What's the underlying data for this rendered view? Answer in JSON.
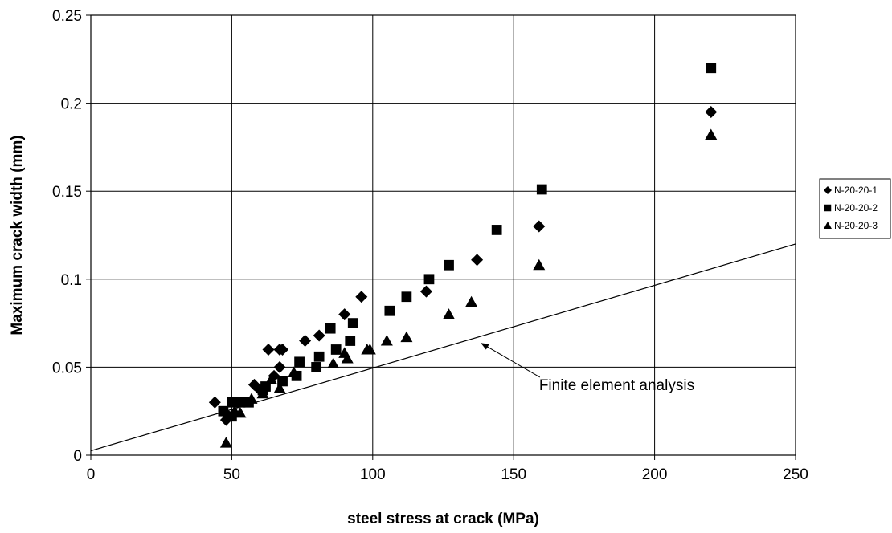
{
  "chart_data": {
    "type": "scatter",
    "title": "",
    "xlabel": "steel stress at crack (MPa)",
    "ylabel": "Maximum crack width (mm)",
    "xlim": [
      0,
      250
    ],
    "ylim": [
      0,
      0.25
    ],
    "x_ticks": [
      0,
      50,
      100,
      150,
      200,
      250
    ],
    "y_ticks": [
      0,
      0.05,
      0.1,
      0.15,
      0.2,
      0.25
    ],
    "x_tick_labels": [
      "0",
      "50",
      "100",
      "150",
      "200",
      "250"
    ],
    "y_tick_labels": [
      "0",
      "0.05",
      "0.1",
      "0.15",
      "0.2",
      "0.25"
    ],
    "grid": true,
    "legend_position": "right",
    "series": [
      {
        "name": "N-20-20-1",
        "marker": "diamond",
        "color": "#000000",
        "points": [
          [
            44,
            0.03
          ],
          [
            48,
            0.02
          ],
          [
            49,
            0.022
          ],
          [
            58,
            0.04
          ],
          [
            60,
            0.037
          ],
          [
            63,
            0.06
          ],
          [
            65,
            0.045
          ],
          [
            67,
            0.05
          ],
          [
            67,
            0.06
          ],
          [
            68,
            0.06
          ],
          [
            76,
            0.065
          ],
          [
            81,
            0.068
          ],
          [
            90,
            0.08
          ],
          [
            96,
            0.09
          ],
          [
            119,
            0.093
          ],
          [
            137,
            0.111
          ],
          [
            159,
            0.13
          ],
          [
            220,
            0.195
          ]
        ]
      },
      {
        "name": "N-20-20-2",
        "marker": "square",
        "color": "#000000",
        "points": [
          [
            47,
            0.025
          ],
          [
            50,
            0.03
          ],
          [
            50,
            0.022
          ],
          [
            53,
            0.03
          ],
          [
            56,
            0.03
          ],
          [
            61,
            0.037
          ],
          [
            62,
            0.039
          ],
          [
            68,
            0.042
          ],
          [
            73,
            0.045
          ],
          [
            74,
            0.053
          ],
          [
            80,
            0.05
          ],
          [
            81,
            0.056
          ],
          [
            85,
            0.072
          ],
          [
            87,
            0.06
          ],
          [
            92,
            0.065
          ],
          [
            93,
            0.075
          ],
          [
            106,
            0.082
          ],
          [
            112,
            0.09
          ],
          [
            120,
            0.1
          ],
          [
            127,
            0.108
          ],
          [
            144,
            0.128
          ],
          [
            160,
            0.151
          ],
          [
            220,
            0.22
          ]
        ]
      },
      {
        "name": "N-20-20-3",
        "marker": "triangle",
        "color": "#000000",
        "points": [
          [
            48,
            0.007
          ],
          [
            51,
            0.025
          ],
          [
            53,
            0.024
          ],
          [
            57,
            0.032
          ],
          [
            61,
            0.035
          ],
          [
            64,
            0.043
          ],
          [
            67,
            0.038
          ],
          [
            72,
            0.047
          ],
          [
            86,
            0.052
          ],
          [
            90,
            0.058
          ],
          [
            91,
            0.055
          ],
          [
            98,
            0.06
          ],
          [
            99,
            0.06
          ],
          [
            105,
            0.065
          ],
          [
            112,
            0.067
          ],
          [
            127,
            0.08
          ],
          [
            135,
            0.087
          ],
          [
            159,
            0.108
          ],
          [
            220,
            0.182
          ]
        ]
      }
    ],
    "trend_line": {
      "name": "Finite element analysis",
      "x1": 0,
      "y1": 0.0025,
      "x2": 250,
      "y2": 0.12
    },
    "annotation": {
      "text": "Finite element analysis",
      "arrow_to": [
        138,
        0.064
      ],
      "text_at": [
        165,
        0.037
      ]
    }
  }
}
